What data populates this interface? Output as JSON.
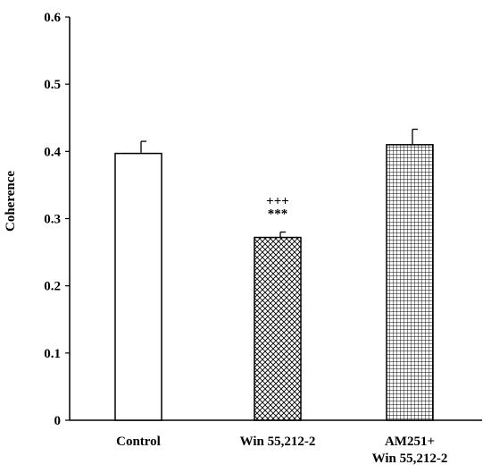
{
  "chart_data": {
    "type": "bar",
    "title": "",
    "xlabel": "",
    "ylabel": "Coherence",
    "ylim": [
      0,
      0.6
    ],
    "yticks": [
      "0",
      "0.1",
      "0.2",
      "0.3",
      "0.4",
      "0.5",
      "0.6"
    ],
    "grid": false,
    "legend": "none",
    "categories": [
      [
        "Control"
      ],
      [
        "Win 55,212-2"
      ],
      [
        "AM251+",
        "Win 55,212-2"
      ]
    ],
    "values": [
      0.397,
      0.272,
      0.41
    ],
    "errors": [
      0.018,
      0.008,
      0.023
    ],
    "patterns": [
      "solid-white",
      "diagonal-crosshatch",
      "square-grid"
    ],
    "annotations": [
      {
        "category_index": 1,
        "lines": [
          "+++",
          "***"
        ]
      }
    ]
  },
  "colors": {
    "axis": "#000000",
    "bar_fill": "#ffffff",
    "bar_stroke": "#000000"
  }
}
